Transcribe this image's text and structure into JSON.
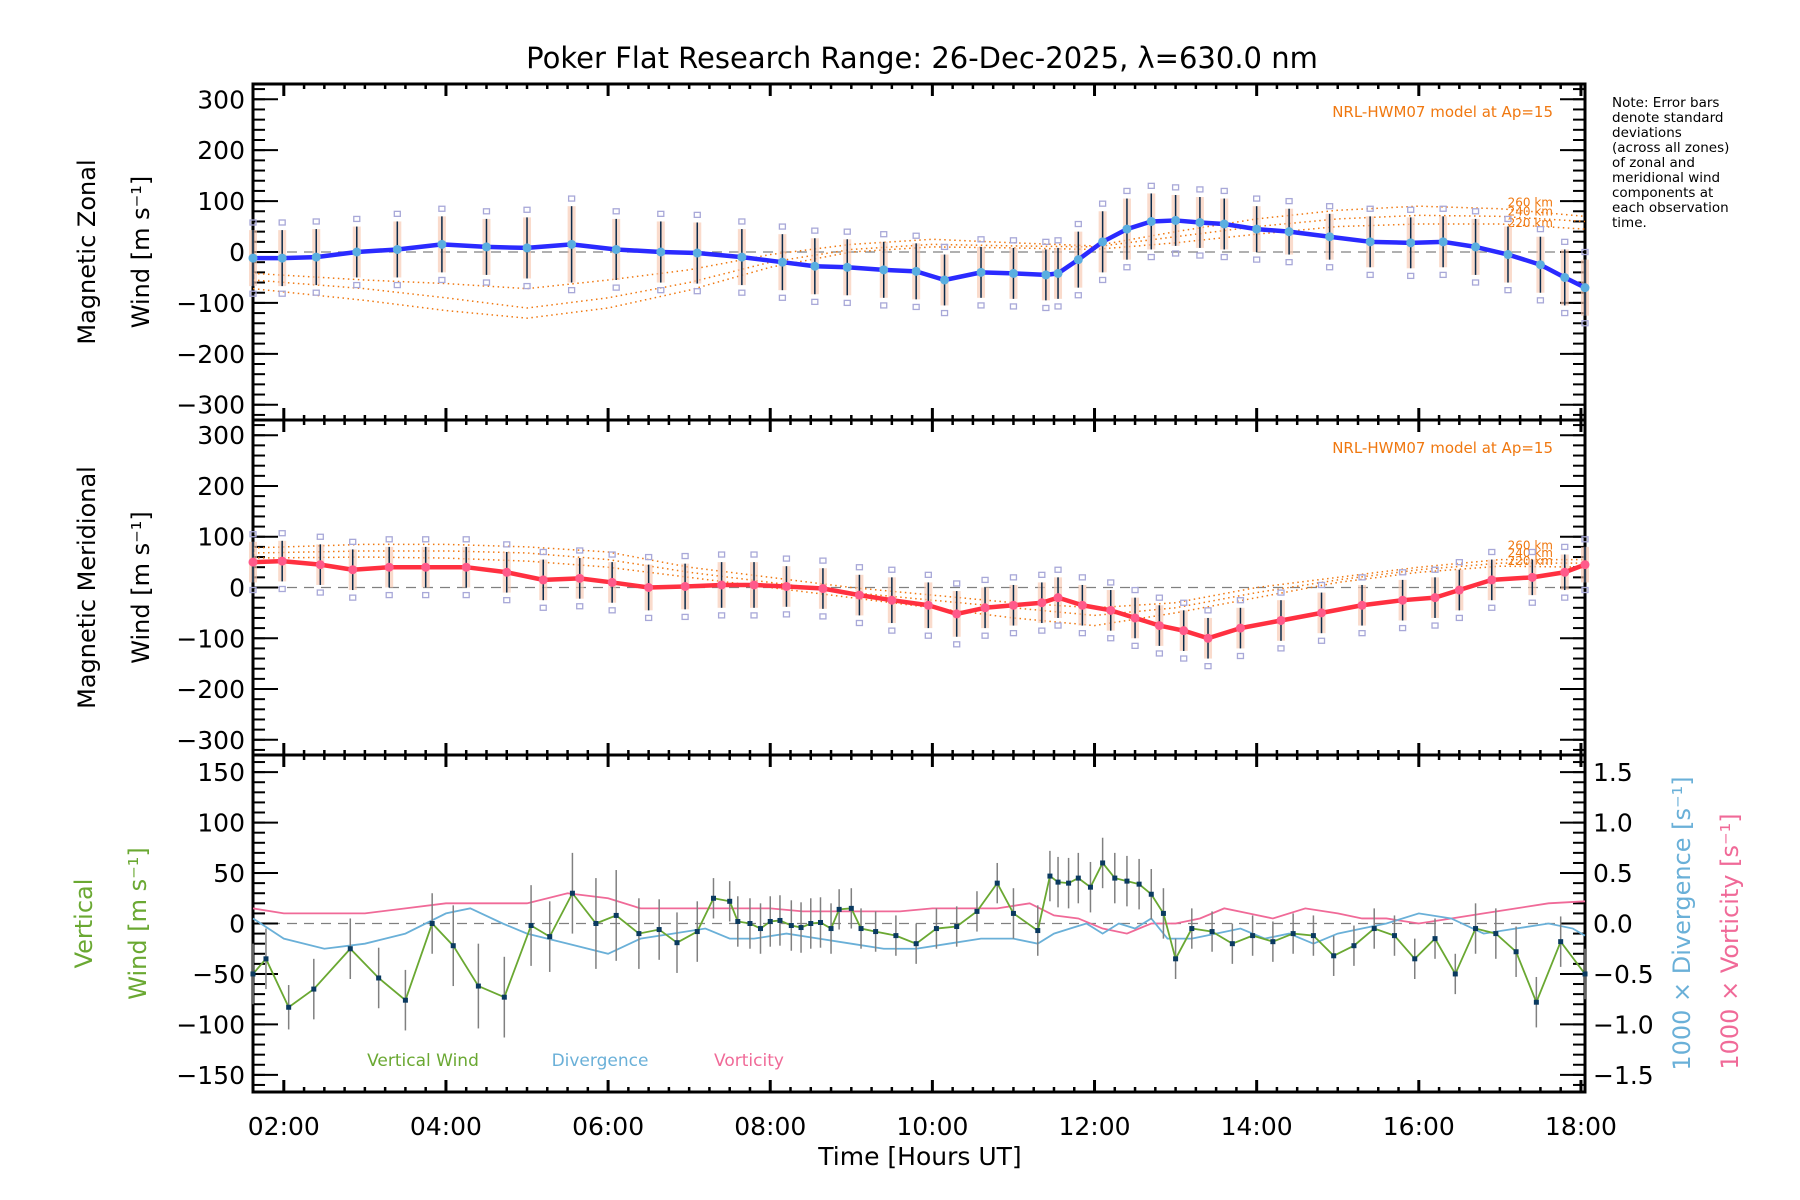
{
  "chart_data": [
    {
      "type": "line",
      "panel": "zonal",
      "title": "Poker Flat Research Range: 26-Dec-2025, λ=630.0 nm",
      "ylabel_line1": "Magnetic Zonal",
      "ylabel_line2": "Wind [m s⁻¹]",
      "ylim": [
        -330,
        330
      ],
      "yticks": [
        300,
        200,
        100,
        0,
        -100,
        -200,
        -300
      ],
      "model_label": "NRL-HWM07 model at Ap=15",
      "model_altitude_labels": [
        "260 km",
        "240 km",
        "220 km"
      ],
      "series": [
        {
          "name": "Zonal wind (mean)",
          "color": "#2a2aff",
          "x": [
            1.62,
            1.98,
            2.4,
            2.9,
            3.4,
            3.95,
            4.5,
            5.0,
            5.55,
            6.1,
            6.65,
            7.1,
            7.65,
            8.15,
            8.55,
            8.95,
            9.4,
            9.8,
            10.15,
            10.6,
            11.0,
            11.4,
            11.55,
            11.8,
            12.1,
            12.4,
            12.7,
            13.0,
            13.3,
            13.6,
            14.0,
            14.4,
            14.9,
            15.4,
            15.9,
            16.3,
            16.7,
            17.1,
            17.5,
            17.8,
            18.05
          ],
          "y": [
            -12,
            -12,
            -10,
            0,
            5,
            15,
            10,
            8,
            15,
            5,
            0,
            -2,
            -10,
            -20,
            -28,
            -30,
            -35,
            -38,
            -55,
            -40,
            -42,
            -45,
            -42,
            -15,
            20,
            45,
            60,
            62,
            58,
            55,
            45,
            40,
            30,
            20,
            18,
            20,
            10,
            -5,
            -25,
            -50,
            -70
          ],
          "errors": [
            55,
            55,
            55,
            50,
            55,
            55,
            55,
            60,
            75,
            60,
            60,
            60,
            55,
            55,
            55,
            55,
            55,
            55,
            50,
            50,
            50,
            50,
            50,
            55,
            60,
            60,
            55,
            50,
            50,
            50,
            45,
            45,
            45,
            50,
            50,
            50,
            55,
            55,
            55,
            55,
            55
          ]
        },
        {
          "name": "NRL-HWM07 260 km",
          "color": "#f07810",
          "x": [
            1.62,
            3,
            4,
            5,
            6,
            7,
            8,
            9,
            10,
            11,
            12,
            13,
            14,
            15,
            16,
            17,
            18.05
          ],
          "y": [
            -42,
            -55,
            -62,
            -72,
            -55,
            -35,
            -5,
            15,
            25,
            18,
            12,
            40,
            65,
            82,
            90,
            85,
            70
          ]
        },
        {
          "name": "NRL-HWM07 240 km",
          "color": "#f07810",
          "x": [
            1.62,
            3,
            4,
            5,
            6,
            7,
            8,
            9,
            10,
            11,
            12,
            13,
            14,
            15,
            16,
            17,
            18.05
          ],
          "y": [
            -55,
            -72,
            -90,
            -110,
            -90,
            -60,
            -20,
            5,
            15,
            12,
            10,
            30,
            50,
            65,
            72,
            70,
            60
          ]
        },
        {
          "name": "NRL-HWM07 220 km",
          "color": "#f07810",
          "x": [
            1.62,
            3,
            4,
            5,
            6,
            7,
            8,
            9,
            10,
            11,
            12,
            13,
            14,
            15,
            16,
            17,
            18.05
          ],
          "y": [
            -72,
            -95,
            -115,
            -130,
            -110,
            -75,
            -30,
            0,
            10,
            8,
            5,
            18,
            35,
            50,
            55,
            55,
            45
          ]
        }
      ]
    },
    {
      "type": "line",
      "panel": "meridional",
      "ylabel_line1": "Magnetic Meridional",
      "ylabel_line2": "Wind [m s⁻¹]",
      "ylim": [
        -330,
        330
      ],
      "yticks": [
        300,
        200,
        100,
        0,
        -100,
        -200,
        -300
      ],
      "model_label": "NRL-HWM07 model at Ap=15",
      "model_altitude_labels": [
        "260 km",
        "240 km",
        "220 km"
      ],
      "series": [
        {
          "name": "Meridional wind (mean)",
          "color": "#ff3040",
          "x": [
            1.62,
            1.98,
            2.45,
            2.85,
            3.3,
            3.75,
            4.25,
            4.75,
            5.2,
            5.65,
            6.05,
            6.5,
            6.95,
            7.4,
            7.8,
            8.2,
            8.65,
            9.1,
            9.5,
            9.95,
            10.3,
            10.65,
            11.0,
            11.35,
            11.55,
            11.85,
            12.2,
            12.5,
            12.8,
            13.1,
            13.4,
            13.8,
            14.3,
            14.8,
            15.3,
            15.8,
            16.2,
            16.5,
            16.9,
            17.4,
            17.8,
            18.05
          ],
          "y": [
            50,
            52,
            45,
            35,
            40,
            40,
            40,
            30,
            15,
            18,
            10,
            0,
            2,
            5,
            5,
            2,
            -2,
            -15,
            -25,
            -35,
            -52,
            -40,
            -35,
            -30,
            -20,
            -35,
            -45,
            -60,
            -75,
            -85,
            -100,
            -80,
            -65,
            -50,
            -35,
            -25,
            -20,
            -5,
            15,
            20,
            30,
            45
          ],
          "errors": [
            40,
            40,
            40,
            40,
            40,
            40,
            40,
            40,
            40,
            40,
            40,
            45,
            45,
            45,
            45,
            40,
            40,
            40,
            45,
            45,
            45,
            40,
            40,
            40,
            40,
            40,
            40,
            40,
            40,
            40,
            40,
            40,
            40,
            40,
            40,
            40,
            40,
            40,
            40,
            35,
            35,
            35
          ]
        },
        {
          "name": "NRL-HWM07 260 km",
          "color": "#f07810",
          "x": [
            1.62,
            3,
            4,
            5,
            6,
            7,
            8,
            9,
            10,
            11,
            12,
            13,
            14,
            15,
            16,
            17,
            18.05
          ],
          "y": [
            78,
            85,
            85,
            80,
            70,
            40,
            20,
            0,
            -15,
            -30,
            -40,
            -30,
            0,
            20,
            40,
            55,
            55
          ]
        },
        {
          "name": "NRL-HWM07 240 km",
          "color": "#f07810",
          "x": [
            1.62,
            3,
            4,
            5,
            6,
            7,
            8,
            9,
            10,
            11,
            12,
            13,
            14,
            15,
            16,
            17,
            18.05
          ],
          "y": [
            68,
            72,
            72,
            68,
            55,
            30,
            10,
            -10,
            -25,
            -40,
            -55,
            -40,
            -10,
            15,
            35,
            48,
            48
          ]
        },
        {
          "name": "NRL-HWM07 220 km",
          "color": "#f07810",
          "x": [
            1.62,
            3,
            4,
            5,
            6,
            7,
            8,
            9,
            10,
            11,
            12,
            13,
            14,
            15,
            16,
            17,
            18.05
          ],
          "y": [
            58,
            60,
            58,
            52,
            40,
            20,
            0,
            -20,
            -40,
            -60,
            -75,
            -50,
            -20,
            10,
            30,
            42,
            40
          ]
        }
      ]
    },
    {
      "type": "line",
      "panel": "vertical",
      "ylabel_line1": "Vertical",
      "ylabel_line2": "Wind [m s⁻¹]",
      "ylim": [
        -167,
        167
      ],
      "yticks": [
        150,
        100,
        50,
        0,
        -50,
        -100,
        -150
      ],
      "y2label_divergence": "1000 × Divergence [s⁻¹]",
      "y2label_vorticity": "1000 × Vorticity [s⁻¹]",
      "y2lim": [
        -1.67,
        1.67
      ],
      "y2ticks": [
        "1.5",
        "1.0",
        "0.5",
        "0.0",
        "−0.5",
        "−1.0",
        "−1.5"
      ],
      "xlabel": "Time [Hours UT]",
      "xticks": [
        "02:00",
        "04:00",
        "06:00",
        "08:00",
        "10:00",
        "12:00",
        "14:00",
        "16:00",
        "18:00"
      ],
      "xlim_hours": [
        1.62,
        18.05
      ],
      "legend": [
        "Vertical Wind",
        "Divergence",
        "Vorticity"
      ],
      "series": [
        {
          "name": "Vertical Wind",
          "color": "#6aa832",
          "x": [
            1.62,
            1.78,
            2.06,
            2.37,
            2.82,
            3.17,
            3.5,
            3.83,
            4.09,
            4.4,
            4.72,
            5.05,
            5.28,
            5.56,
            5.85,
            6.1,
            6.38,
            6.63,
            6.85,
            7.1,
            7.3,
            7.5,
            7.6,
            7.75,
            7.88,
            8.0,
            8.12,
            8.26,
            8.38,
            8.5,
            8.62,
            8.75,
            8.85,
            9.0,
            9.12,
            9.3,
            9.55,
            9.8,
            10.05,
            10.3,
            10.55,
            10.8,
            11.0,
            11.3,
            11.45,
            11.55,
            11.68,
            11.8,
            11.95,
            12.1,
            12.25,
            12.4,
            12.55,
            12.7,
            12.85,
            13.0,
            13.2,
            13.45,
            13.7,
            13.95,
            14.2,
            14.45,
            14.7,
            14.95,
            15.2,
            15.45,
            15.7,
            15.95,
            16.2,
            16.45,
            16.7,
            16.95,
            17.2,
            17.45,
            17.75,
            18.05
          ],
          "y": [
            -50,
            -35,
            -83,
            -65,
            -25,
            -54,
            -76,
            0,
            -22,
            -62,
            -73,
            -2,
            -13,
            30,
            0,
            8,
            -10,
            -6,
            -19,
            -8,
            25,
            22,
            2,
            0,
            -5,
            2,
            3,
            -2,
            -4,
            0,
            1,
            -5,
            14,
            15,
            -5,
            -8,
            -12,
            -20,
            -5,
            -3,
            12,
            40,
            10,
            -7,
            47,
            41,
            40,
            45,
            36,
            60,
            45,
            42,
            39,
            29,
            10,
            -35,
            -5,
            -8,
            -20,
            -12,
            -18,
            -10,
            -12,
            -32,
            -22,
            -5,
            -12,
            -35,
            -15,
            -50,
            -5,
            -10,
            -28,
            -78,
            -18,
            -50
          ],
          "errors": [
            30,
            30,
            22,
            30,
            30,
            30,
            30,
            30,
            40,
            42,
            40,
            40,
            35,
            40,
            45,
            45,
            35,
            30,
            30,
            30,
            20,
            20,
            25,
            25,
            25,
            25,
            25,
            25,
            25,
            25,
            25,
            25,
            20,
            20,
            20,
            20,
            20,
            20,
            20,
            20,
            20,
            20,
            25,
            25,
            25,
            25,
            25,
            25,
            25,
            25,
            25,
            25,
            25,
            25,
            25,
            20,
            20,
            20,
            20,
            20,
            20,
            20,
            20,
            20,
            20,
            20,
            20,
            20,
            20,
            20,
            25,
            25,
            25,
            25,
            25,
            25
          ]
        },
        {
          "name": "Divergence",
          "color": "#6ab0d8",
          "x": [
            1.62,
            2.0,
            2.5,
            3.0,
            3.5,
            4.0,
            4.3,
            4.7,
            5.0,
            5.5,
            6.0,
            6.4,
            6.8,
            7.2,
            7.5,
            7.8,
            8.2,
            8.6,
            9.0,
            9.4,
            9.8,
            10.2,
            10.6,
            11.0,
            11.3,
            11.5,
            11.7,
            11.9,
            12.1,
            12.3,
            12.5,
            12.7,
            12.9,
            13.2,
            13.5,
            13.8,
            14.1,
            14.4,
            14.7,
            15.0,
            15.3,
            15.6,
            16.0,
            16.4,
            16.8,
            17.2,
            17.6,
            17.9,
            18.05
          ],
          "y": [
            0.05,
            -0.15,
            -0.25,
            -0.2,
            -0.1,
            0.1,
            0.15,
            0.0,
            -0.1,
            -0.2,
            -0.3,
            -0.15,
            -0.1,
            -0.05,
            -0.15,
            -0.15,
            -0.1,
            -0.15,
            -0.2,
            -0.25,
            -0.25,
            -0.2,
            -0.15,
            -0.15,
            -0.2,
            -0.1,
            -0.05,
            0.0,
            -0.1,
            0.0,
            -0.05,
            0.05,
            -0.15,
            -0.15,
            -0.1,
            -0.05,
            -0.15,
            -0.1,
            -0.2,
            -0.1,
            -0.05,
            0.0,
            0.1,
            0.05,
            -0.1,
            -0.05,
            0.0,
            -0.05,
            -0.12
          ]
        },
        {
          "name": "Vorticity",
          "color": "#f06a98",
          "x": [
            1.62,
            2.0,
            2.5,
            3.0,
            3.5,
            4.0,
            4.5,
            5.0,
            5.5,
            6.0,
            6.4,
            6.8,
            7.2,
            7.6,
            8.0,
            8.4,
            8.8,
            9.2,
            9.6,
            10.0,
            10.4,
            10.8,
            11.2,
            11.5,
            11.8,
            12.1,
            12.4,
            12.7,
            13.0,
            13.3,
            13.6,
            13.9,
            14.2,
            14.6,
            15.0,
            15.3,
            15.6,
            16.0,
            16.4,
            16.8,
            17.2,
            17.6,
            18.05
          ],
          "y": [
            0.15,
            0.1,
            0.1,
            0.1,
            0.15,
            0.2,
            0.2,
            0.2,
            0.3,
            0.25,
            0.15,
            0.15,
            0.15,
            0.15,
            0.15,
            0.12,
            0.12,
            0.12,
            0.12,
            0.15,
            0.15,
            0.15,
            0.2,
            0.08,
            0.05,
            -0.05,
            -0.1,
            0.0,
            0.0,
            0.05,
            0.15,
            0.1,
            0.05,
            0.15,
            0.1,
            0.05,
            0.05,
            0.0,
            0.05,
            0.1,
            0.15,
            0.2,
            0.22
          ]
        }
      ]
    }
  ],
  "note": {
    "text": "Note: Error bars\ndenote standard\ndeviations\n(across all zones)\nof zonal and\nmeridional wind\ncomponents at\neach observation\ntime."
  },
  "colors": {
    "model": "#f07810",
    "zonal": "#2a2aff",
    "zonal_marker": "#5aaee0",
    "meridional": "#ff3040",
    "meridional_marker": "#ff5a8a",
    "vertical": "#6aa832",
    "vertical_marker": "#0a3a60",
    "divergence": "#6ab0d8",
    "vorticity": "#f06a98",
    "errorbar": "#0a2a4a",
    "scatter": "#a8a8d8",
    "zero_line": "#808080"
  }
}
